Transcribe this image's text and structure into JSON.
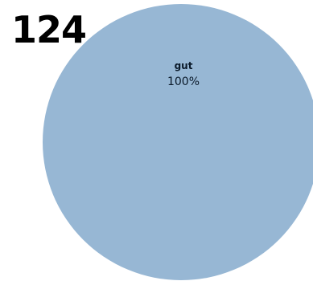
{
  "chart_number": "124",
  "chart_data": {
    "type": "pie",
    "slices": [
      {
        "label": "gut",
        "value": 100,
        "value_label": "100%",
        "color": "#97b7d4"
      }
    ]
  }
}
